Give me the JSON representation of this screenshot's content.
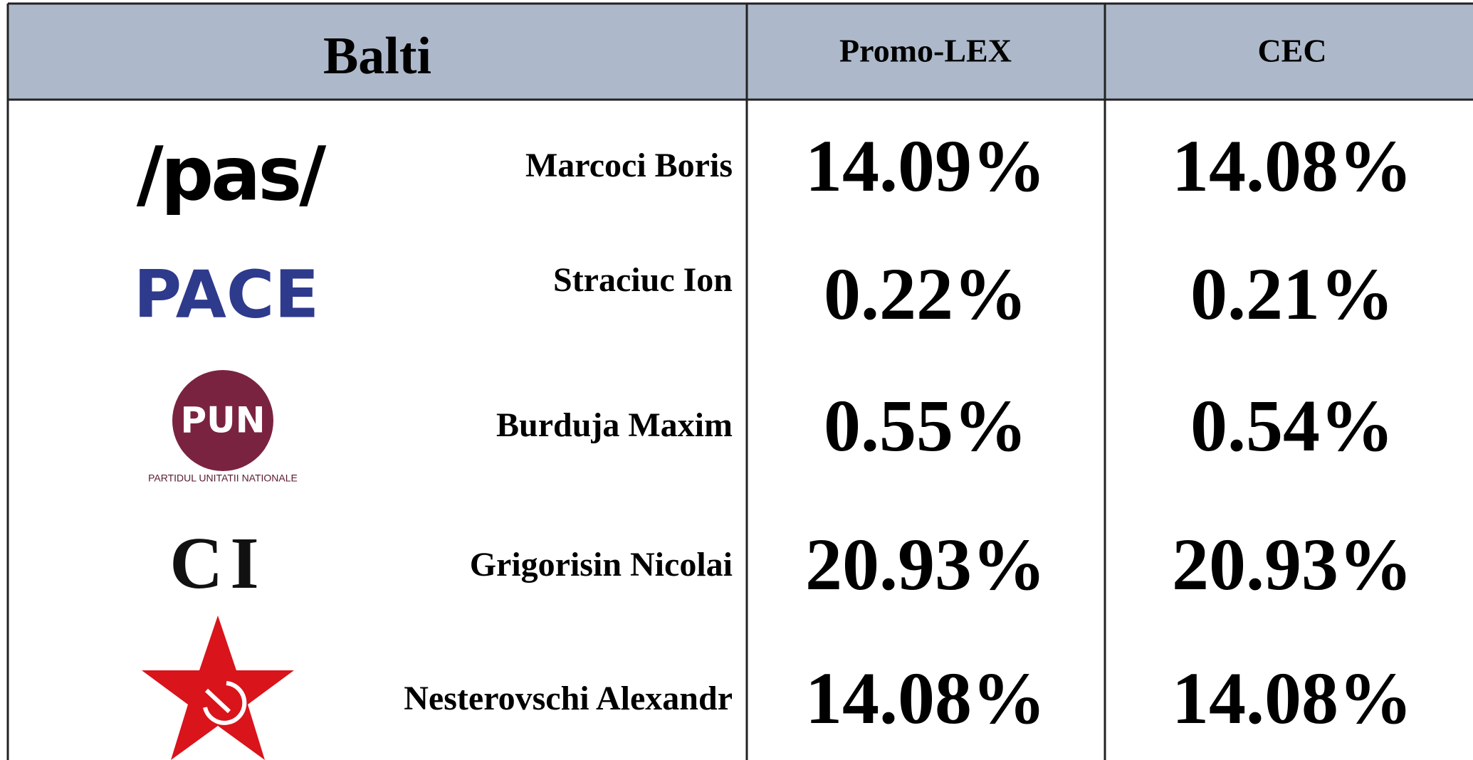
{
  "header": {
    "title": "Balti",
    "columns": [
      "Promo-LEX",
      "CEC"
    ]
  },
  "rows": [
    {
      "logo": "/pas/",
      "candidate": "Marcoci Boris",
      "promo_lex": "14.09%",
      "cec": "14.08%"
    },
    {
      "logo": "PACE",
      "candidate": "Straciuc Ion",
      "promo_lex": "0.22%",
      "cec": "0.21%"
    },
    {
      "logo": "PUN",
      "logo_caption": "PARTIDUL UNITATII NATIONALE",
      "candidate": "Burduja Maxim",
      "promo_lex": "0.55%",
      "cec": "0.54%"
    },
    {
      "logo": "CI",
      "candidate": "Grigorisin Nicolai",
      "promo_lex": "20.93%",
      "cec": "20.93%"
    },
    {
      "candidate": "Nesterovschi Alexandr",
      "promo_lex": "14.08%",
      "cec": "14.08%"
    }
  ]
}
